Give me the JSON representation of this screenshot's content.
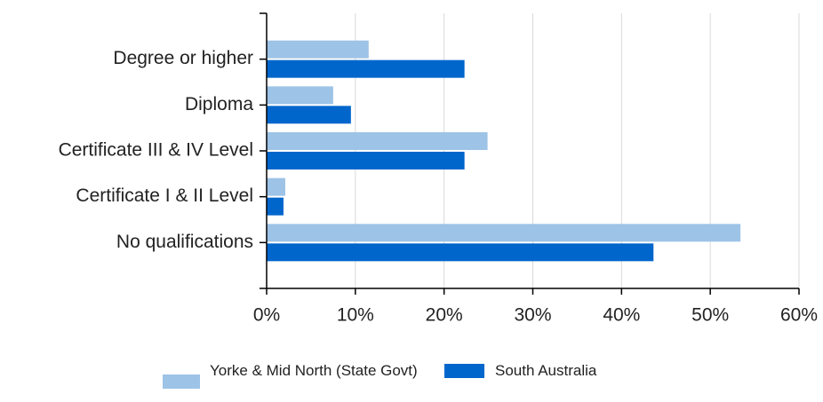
{
  "chart_data": {
    "type": "hbar",
    "categories": [
      "Degree or higher",
      "Diploma",
      "Certificate III & IV Level",
      "Certificate I & II Level",
      "No qualifications"
    ],
    "series": [
      {
        "name": "Yorke & Mid North (State Govt)",
        "color": "#9dc3e6",
        "values": [
          11.5,
          7.5,
          24.9,
          2.1,
          53.4
        ]
      },
      {
        "name": "South Australia",
        "color": "#0066cc",
        "values": [
          22.3,
          9.5,
          22.3,
          1.9,
          43.6
        ]
      }
    ],
    "xlim": [
      0,
      60
    ],
    "xticks": [
      {
        "value": 0,
        "label": "0%"
      },
      {
        "value": 10,
        "label": "10%"
      },
      {
        "value": 20,
        "label": "20%"
      },
      {
        "value": 30,
        "label": "30%"
      },
      {
        "value": 40,
        "label": "40%"
      },
      {
        "value": 50,
        "label": "50%"
      },
      {
        "value": 60,
        "label": "60%"
      }
    ],
    "grid": true
  }
}
